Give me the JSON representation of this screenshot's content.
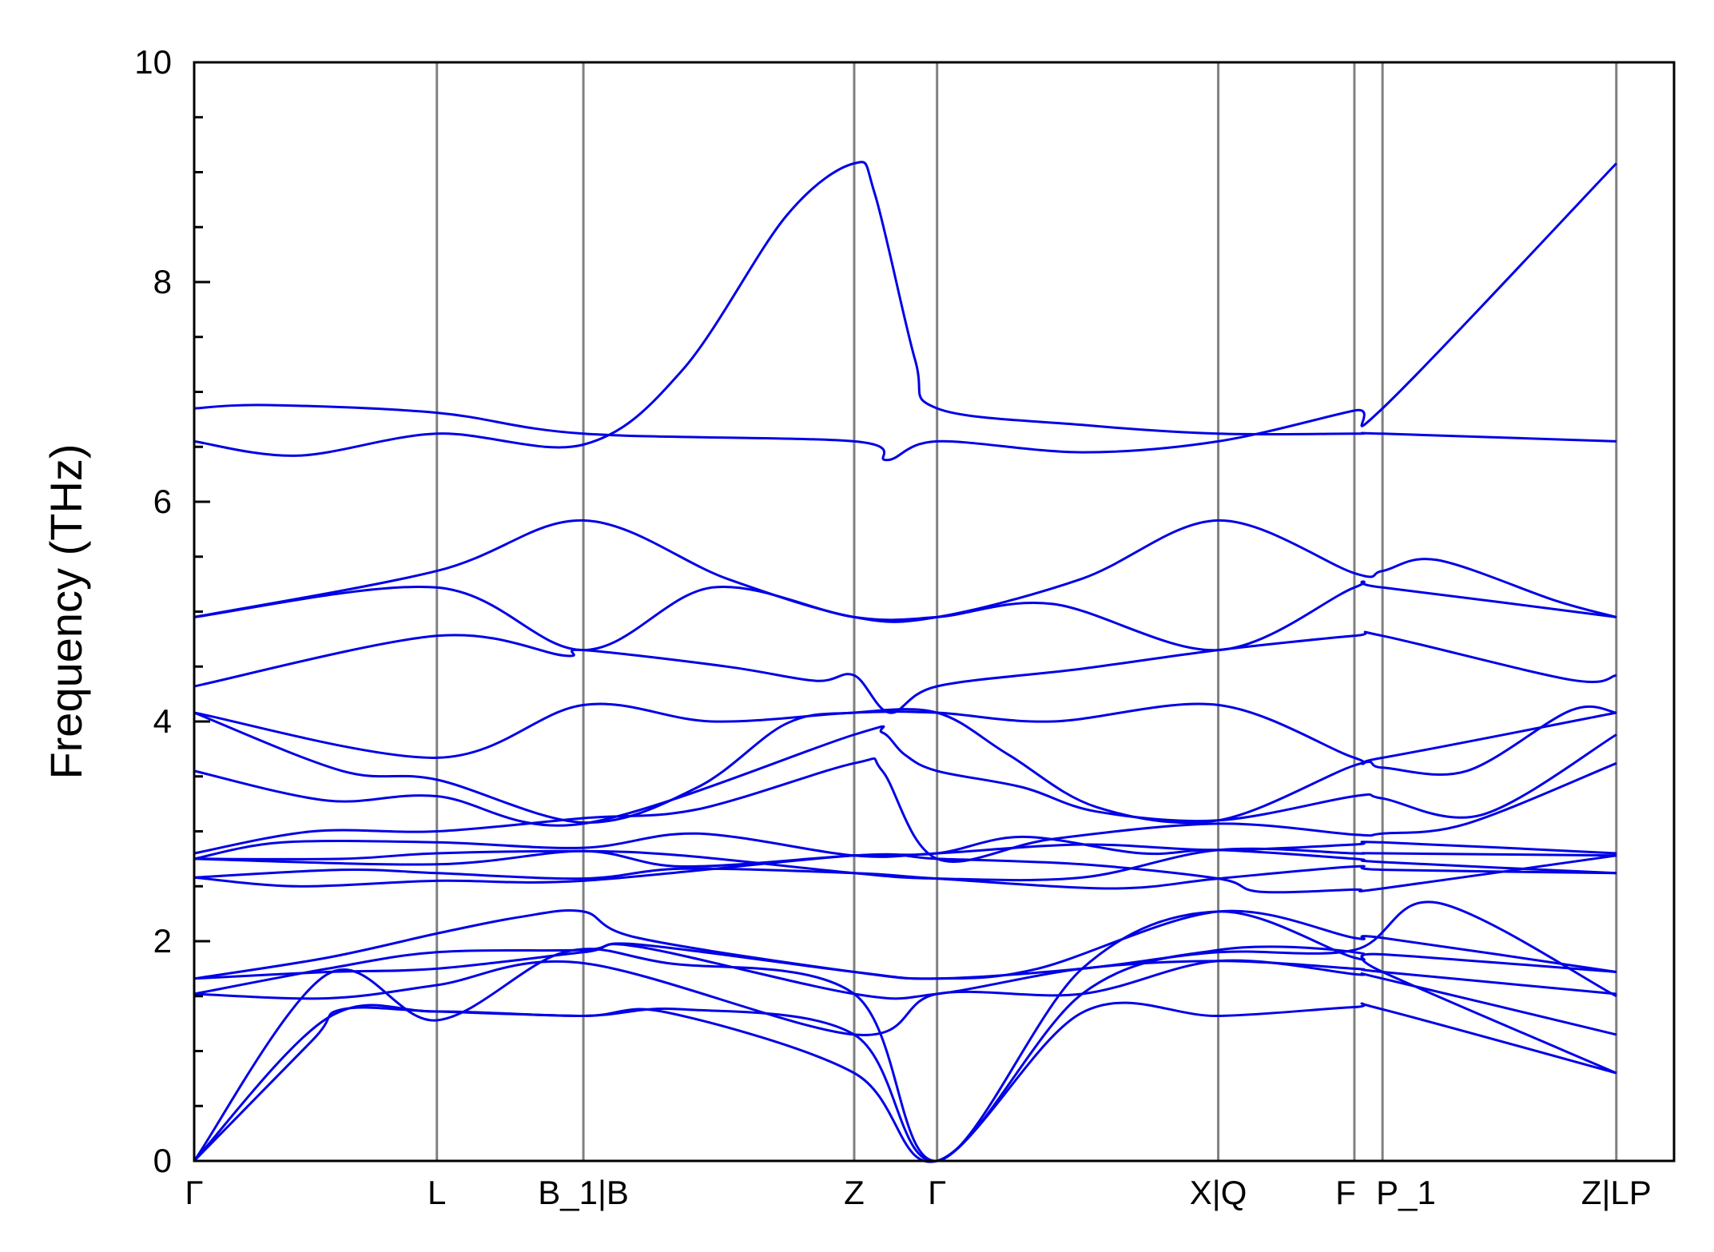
{
  "chart_data": {
    "type": "line",
    "title": "",
    "xlabel": "",
    "ylabel": "Frequency (THz)",
    "ylim": [
      0,
      10
    ],
    "yticks": [
      0,
      2,
      4,
      6,
      8,
      10
    ],
    "xlim": [
      0,
      1
    ],
    "grid": false,
    "legend": "none",
    "colors": {
      "bands": "#0000e6",
      "kpath_lines": "#808080",
      "zero_line": "#000000"
    },
    "high_symmetry_points": [
      {
        "label": "Γ",
        "x": 0.0
      },
      {
        "label": "L",
        "x": 0.164
      },
      {
        "label": "B_1|B",
        "x": 0.263
      },
      {
        "label": "Z",
        "x": 0.446
      },
      {
        "label": "Γ",
        "x": 0.502
      },
      {
        "label": "X|Q",
        "x": 0.692
      },
      {
        "label": "F",
        "x": 0.784
      },
      {
        "label": "P_1",
        "x": 0.803
      },
      {
        "label": "Z|LP",
        "x": 0.961
      }
    ],
    "series": [
      {
        "values": [
          [
            0.0,
            6.85
          ],
          [
            0.05,
            6.88
          ],
          [
            0.164,
            6.81
          ],
          [
            0.263,
            6.62
          ],
          [
            0.446,
            6.55
          ],
          [
            0.468,
            6.38
          ],
          [
            0.502,
            6.55
          ],
          [
            0.6,
            6.45
          ],
          [
            0.692,
            6.55
          ],
          [
            0.784,
            6.83
          ],
          [
            0.803,
            6.85
          ],
          [
            0.961,
            9.08
          ]
        ]
      },
      {
        "values": [
          [
            0.0,
            6.55
          ],
          [
            0.07,
            6.42
          ],
          [
            0.164,
            6.62
          ],
          [
            0.263,
            6.52
          ],
          [
            0.33,
            7.2
          ],
          [
            0.4,
            8.6
          ],
          [
            0.446,
            9.08
          ],
          [
            0.46,
            8.8
          ],
          [
            0.487,
            7.3
          ],
          [
            0.502,
            6.85
          ],
          [
            0.6,
            6.7
          ],
          [
            0.692,
            6.62
          ],
          [
            0.784,
            6.62
          ],
          [
            0.803,
            6.62
          ],
          [
            0.961,
            6.55
          ]
        ]
      },
      {
        "values": [
          [
            0.0,
            4.95
          ],
          [
            0.164,
            5.37
          ],
          [
            0.263,
            5.83
          ],
          [
            0.36,
            5.3
          ],
          [
            0.446,
            4.95
          ],
          [
            0.502,
            4.95
          ],
          [
            0.6,
            5.3
          ],
          [
            0.692,
            5.83
          ],
          [
            0.784,
            5.35
          ],
          [
            0.803,
            5.37
          ],
          [
            0.84,
            5.47
          ],
          [
            0.92,
            5.1
          ],
          [
            0.961,
            4.95
          ]
        ]
      },
      {
        "values": [
          [
            0.0,
            4.95
          ],
          [
            0.164,
            5.22
          ],
          [
            0.263,
            4.65
          ],
          [
            0.35,
            5.22
          ],
          [
            0.446,
            4.95
          ],
          [
            0.502,
            4.95
          ],
          [
            0.58,
            5.07
          ],
          [
            0.692,
            4.65
          ],
          [
            0.784,
            5.22
          ],
          [
            0.803,
            5.22
          ],
          [
            0.961,
            4.95
          ]
        ]
      },
      {
        "values": [
          [
            0.0,
            4.32
          ],
          [
            0.164,
            4.78
          ],
          [
            0.25,
            4.6
          ],
          [
            0.263,
            4.65
          ],
          [
            0.36,
            4.5
          ],
          [
            0.42,
            4.37
          ],
          [
            0.446,
            4.42
          ],
          [
            0.47,
            4.08
          ],
          [
            0.502,
            4.32
          ],
          [
            0.6,
            4.48
          ],
          [
            0.692,
            4.65
          ],
          [
            0.784,
            4.78
          ],
          [
            0.803,
            4.78
          ],
          [
            0.93,
            4.38
          ],
          [
            0.961,
            4.42
          ]
        ]
      },
      {
        "values": [
          [
            0.0,
            4.08
          ],
          [
            0.164,
            3.67
          ],
          [
            0.263,
            4.15
          ],
          [
            0.35,
            4.0
          ],
          [
            0.446,
            4.08
          ],
          [
            0.502,
            4.08
          ],
          [
            0.58,
            4.0
          ],
          [
            0.692,
            4.15
          ],
          [
            0.784,
            3.67
          ],
          [
            0.803,
            3.67
          ],
          [
            0.961,
            4.08
          ]
        ]
      },
      {
        "values": [
          [
            0.0,
            4.08
          ],
          [
            0.1,
            3.55
          ],
          [
            0.164,
            3.47
          ],
          [
            0.263,
            3.08
          ],
          [
            0.34,
            3.4
          ],
          [
            0.4,
            3.98
          ],
          [
            0.446,
            4.08
          ],
          [
            0.502,
            4.08
          ],
          [
            0.55,
            3.7
          ],
          [
            0.61,
            3.22
          ],
          [
            0.692,
            3.1
          ],
          [
            0.784,
            3.6
          ],
          [
            0.803,
            3.58
          ],
          [
            0.86,
            3.55
          ],
          [
            0.93,
            4.1
          ],
          [
            0.961,
            4.08
          ]
        ]
      },
      {
        "values": [
          [
            0.0,
            3.55
          ],
          [
            0.09,
            3.28
          ],
          [
            0.164,
            3.32
          ],
          [
            0.263,
            3.07
          ],
          [
            0.446,
            3.88
          ],
          [
            0.465,
            3.9
          ],
          [
            0.48,
            3.7
          ],
          [
            0.502,
            3.55
          ],
          [
            0.56,
            3.4
          ],
          [
            0.61,
            3.18
          ],
          [
            0.692,
            3.1
          ],
          [
            0.784,
            3.32
          ],
          [
            0.803,
            3.3
          ],
          [
            0.87,
            3.15
          ],
          [
            0.961,
            3.88
          ]
        ]
      },
      {
        "values": [
          [
            0.0,
            2.8
          ],
          [
            0.08,
            3.0
          ],
          [
            0.164,
            3.0
          ],
          [
            0.263,
            3.12
          ],
          [
            0.34,
            3.2
          ],
          [
            0.446,
            3.62
          ],
          [
            0.465,
            3.55
          ],
          [
            0.502,
            2.75
          ],
          [
            0.58,
            2.93
          ],
          [
            0.692,
            3.07
          ],
          [
            0.784,
            2.97
          ],
          [
            0.803,
            2.98
          ],
          [
            0.86,
            3.07
          ],
          [
            0.961,
            3.62
          ]
        ]
      },
      {
        "values": [
          [
            0.0,
            2.75
          ],
          [
            0.06,
            2.9
          ],
          [
            0.164,
            2.9
          ],
          [
            0.263,
            2.85
          ],
          [
            0.34,
            2.98
          ],
          [
            0.446,
            2.78
          ],
          [
            0.502,
            2.8
          ],
          [
            0.6,
            2.88
          ],
          [
            0.692,
            2.83
          ],
          [
            0.784,
            2.88
          ],
          [
            0.803,
            2.9
          ],
          [
            0.961,
            2.8
          ]
        ]
      },
      {
        "values": [
          [
            0.0,
            2.75
          ],
          [
            0.1,
            2.75
          ],
          [
            0.164,
            2.8
          ],
          [
            0.263,
            2.82
          ],
          [
            0.33,
            2.78
          ],
          [
            0.446,
            2.62
          ],
          [
            0.502,
            2.57
          ],
          [
            0.6,
            2.58
          ],
          [
            0.692,
            2.83
          ],
          [
            0.784,
            2.8
          ],
          [
            0.803,
            2.8
          ],
          [
            0.961,
            2.78
          ]
        ]
      },
      {
        "values": [
          [
            0.0,
            2.75
          ],
          [
            0.164,
            2.7
          ],
          [
            0.263,
            2.82
          ],
          [
            0.33,
            2.68
          ],
          [
            0.446,
            2.78
          ],
          [
            0.502,
            2.8
          ],
          [
            0.56,
            2.95
          ],
          [
            0.64,
            2.8
          ],
          [
            0.692,
            2.83
          ],
          [
            0.784,
            2.75
          ],
          [
            0.803,
            2.72
          ],
          [
            0.961,
            2.62
          ]
        ]
      },
      {
        "values": [
          [
            0.0,
            2.58
          ],
          [
            0.1,
            2.65
          ],
          [
            0.164,
            2.62
          ],
          [
            0.263,
            2.57
          ],
          [
            0.33,
            2.66
          ],
          [
            0.446,
            2.62
          ],
          [
            0.502,
            2.57
          ],
          [
            0.62,
            2.48
          ],
          [
            0.692,
            2.57
          ],
          [
            0.784,
            2.68
          ],
          [
            0.803,
            2.65
          ],
          [
            0.961,
            2.62
          ]
        ]
      },
      {
        "values": [
          [
            0.0,
            2.58
          ],
          [
            0.07,
            2.5
          ],
          [
            0.164,
            2.55
          ],
          [
            0.263,
            2.55
          ],
          [
            0.446,
            2.78
          ],
          [
            0.502,
            2.75
          ],
          [
            0.6,
            2.7
          ],
          [
            0.692,
            2.57
          ],
          [
            0.72,
            2.45
          ],
          [
            0.784,
            2.47
          ],
          [
            0.803,
            2.48
          ],
          [
            0.961,
            2.78
          ]
        ]
      },
      {
        "values": [
          [
            0.0,
            1.66
          ],
          [
            0.09,
            1.85
          ],
          [
            0.164,
            2.07
          ],
          [
            0.22,
            2.22
          ],
          [
            0.263,
            2.27
          ],
          [
            0.3,
            2.03
          ],
          [
            0.446,
            1.72
          ],
          [
            0.502,
            1.66
          ],
          [
            0.57,
            1.75
          ],
          [
            0.692,
            2.27
          ],
          [
            0.784,
            2.03
          ],
          [
            0.803,
            2.03
          ],
          [
            0.961,
            1.72
          ]
        ]
      },
      {
        "values": [
          [
            0.0,
            1.52
          ],
          [
            0.09,
            1.75
          ],
          [
            0.164,
            1.9
          ],
          [
            0.263,
            1.92
          ],
          [
            0.3,
            1.97
          ],
          [
            0.446,
            1.72
          ],
          [
            0.502,
            1.66
          ],
          [
            0.6,
            1.75
          ],
          [
            0.692,
            1.9
          ],
          [
            0.784,
            1.92
          ],
          [
            0.84,
            2.35
          ],
          [
            0.961,
            1.5
          ]
        ]
      },
      {
        "values": [
          [
            0.0,
            1.66
          ],
          [
            0.09,
            1.72
          ],
          [
            0.164,
            1.75
          ],
          [
            0.263,
            1.9
          ],
          [
            0.3,
            1.95
          ],
          [
            0.446,
            1.52
          ],
          [
            0.502,
            1.52
          ],
          [
            0.6,
            1.75
          ],
          [
            0.692,
            1.82
          ],
          [
            0.784,
            1.75
          ],
          [
            0.803,
            1.72
          ],
          [
            0.961,
            1.52
          ]
        ]
      },
      {
        "values": [
          [
            0.0,
            1.52
          ],
          [
            0.09,
            1.48
          ],
          [
            0.164,
            1.6
          ],
          [
            0.263,
            1.8
          ],
          [
            0.446,
            1.15
          ],
          [
            0.502,
            1.52
          ],
          [
            0.6,
            1.52
          ],
          [
            0.692,
            1.82
          ],
          [
            0.784,
            1.7
          ],
          [
            0.803,
            1.66
          ],
          [
            0.961,
            1.15
          ]
        ]
      },
      {
        "values": [
          [
            0.0,
            0.0
          ],
          [
            0.09,
            1.7
          ],
          [
            0.164,
            1.28
          ],
          [
            0.25,
            1.9
          ],
          [
            0.32,
            1.8
          ],
          [
            0.446,
            1.52
          ],
          [
            0.502,
            0.0
          ],
          [
            0.6,
            1.75
          ],
          [
            0.692,
            2.27
          ],
          [
            0.784,
            1.85
          ],
          [
            0.803,
            1.88
          ],
          [
            0.961,
            1.72
          ]
        ]
      },
      {
        "values": [
          [
            0.0,
            0.0
          ],
          [
            0.09,
            1.3
          ],
          [
            0.164,
            1.36
          ],
          [
            0.263,
            1.32
          ],
          [
            0.33,
            1.38
          ],
          [
            0.446,
            1.15
          ],
          [
            0.502,
            0.0
          ],
          [
            0.6,
            1.52
          ],
          [
            0.692,
            1.92
          ],
          [
            0.784,
            1.9
          ],
          [
            0.803,
            1.72
          ],
          [
            0.961,
            0.8
          ]
        ]
      },
      {
        "values": [
          [
            0.0,
            0.0
          ],
          [
            0.08,
            1.1
          ],
          [
            0.1,
            1.38
          ],
          [
            0.164,
            1.36
          ],
          [
            0.263,
            1.32
          ],
          [
            0.32,
            1.35
          ],
          [
            0.446,
            0.8
          ],
          [
            0.502,
            0.0
          ],
          [
            0.6,
            1.35
          ],
          [
            0.692,
            1.32
          ],
          [
            0.784,
            1.4
          ],
          [
            0.803,
            1.38
          ],
          [
            0.961,
            0.8
          ]
        ]
      }
    ]
  }
}
